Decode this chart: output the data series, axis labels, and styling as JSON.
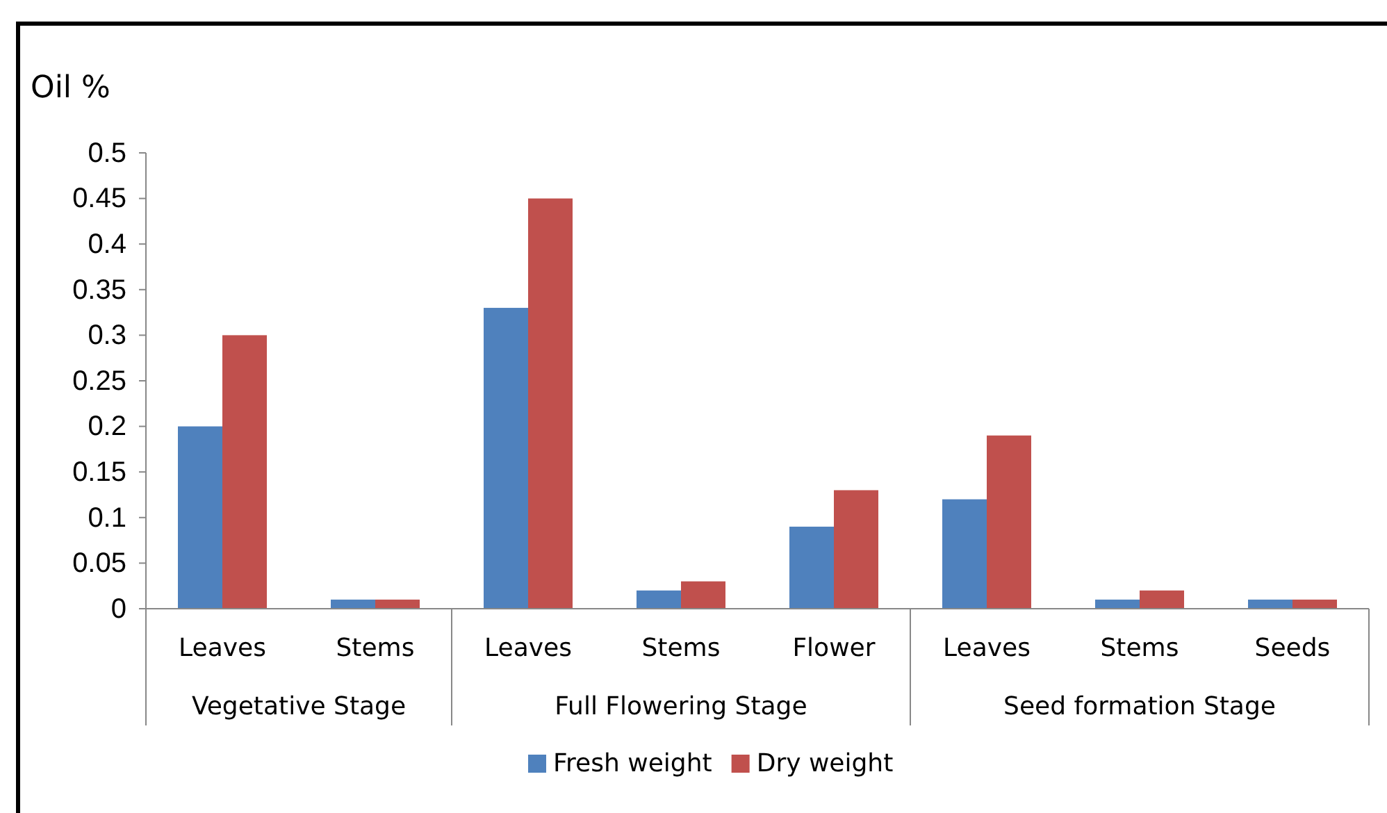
{
  "chart_data": {
    "type": "bar",
    "ylabel": "Oil %",
    "categories": [
      "Leaves",
      "Stems",
      "Leaves",
      "Stems",
      "Flower",
      "Leaves",
      "Stems",
      "Seeds"
    ],
    "series": [
      {
        "name": "Fresh weight",
        "color": "#4f81bd",
        "values": [
          0.2,
          0.01,
          0.33,
          0.02,
          0.09,
          0.12,
          0.01,
          0.01
        ]
      },
      {
        "name": "Dry weight",
        "color": "#c0504d",
        "values": [
          0.3,
          0.01,
          0.45,
          0.03,
          0.13,
          0.19,
          0.02,
          0.01
        ]
      }
    ],
    "annotations": [
      "Vegetative Stage",
      "Full Flowering Stage",
      "Seed formation Stage"
    ],
    "ylim": [
      0,
      0.5
    ],
    "yticks": [
      0,
      0.05,
      0.1,
      0.15,
      0.2,
      0.25,
      0.3,
      0.35,
      0.4,
      0.45,
      0.5
    ],
    "grid": false,
    "legend": "bottom"
  }
}
